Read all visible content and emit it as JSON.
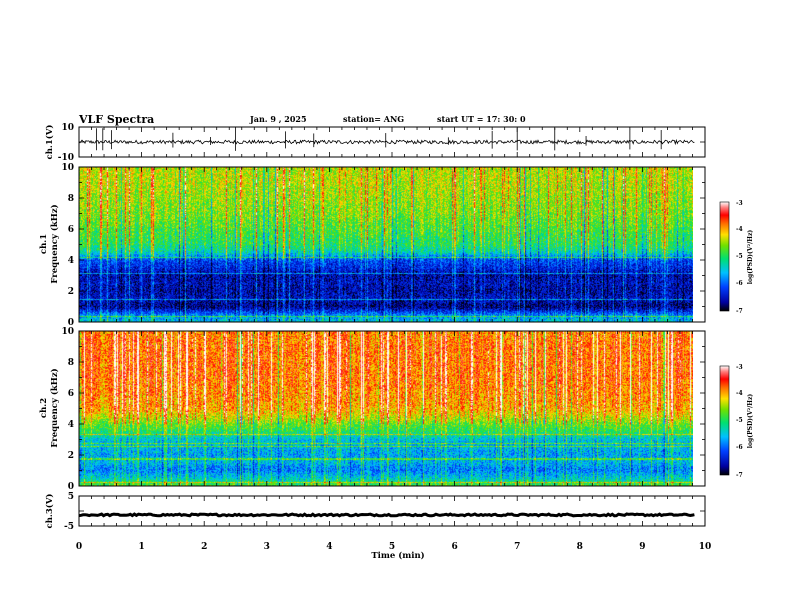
{
  "header": {
    "title": "VLF Spectra",
    "date": "Jan. 9 , 2025",
    "station": "station= ANG",
    "start": "start UT = 17: 30: 0"
  },
  "chart_data": [
    {
      "type": "line",
      "panel": "ch1-waveform",
      "ylabel": "ch.1(V)",
      "ylim": [
        -10,
        10
      ],
      "y_tick_labels": [
        "10",
        "-10"
      ],
      "xlim": [
        0,
        10
      ],
      "baseline_level": 0,
      "noise_amplitude": 1.2,
      "spike_x_min": [
        0.28,
        0.38,
        0.52,
        1.5,
        2.1,
        2.5,
        3.3,
        3.75,
        4.9,
        5.9,
        6.6,
        7.0,
        7.6,
        8.1,
        8.8,
        9.3
      ]
    },
    {
      "type": "heatmap",
      "panel": "ch1-spectrogram",
      "ylabel": [
        "ch.1",
        "Frequency (kHz)"
      ],
      "y_tick_labels": [
        "0",
        "2",
        "4",
        "6",
        "8",
        "10"
      ],
      "ylim": [
        0,
        10
      ],
      "xlim": [
        0,
        9.83
      ],
      "unit_x": "min",
      "value_unit": "log(PSD)(V²/Hz)",
      "profile_freq_khz": [
        0,
        0.4,
        0.8,
        1.0,
        1.5,
        2.0,
        2.5,
        3.0,
        3.5,
        4.0,
        4.5,
        5.0,
        6.0,
        7.0,
        8.0,
        9.0,
        10.0
      ],
      "profile_log_psd": [
        -5.5,
        -5.8,
        -6.5,
        -6.7,
        -6.5,
        -6.6,
        -6.5,
        -6.6,
        -6.3,
        -6.1,
        -5.3,
        -5.0,
        -4.8,
        -4.6,
        -4.5,
        -4.4,
        -4.4
      ],
      "colorbar": {
        "min": -7,
        "max": -3,
        "tick_labels": [
          "-3",
          "-4",
          "-5",
          "-6",
          "-7"
        ],
        "label": "log(PSD)(V²/Hz)"
      }
    },
    {
      "type": "heatmap",
      "panel": "ch2-spectrogram",
      "ylabel": [
        "ch.2",
        "Frequency (kHz)"
      ],
      "y_tick_labels": [
        "0",
        "2",
        "4",
        "6",
        "8",
        "10"
      ],
      "ylim": [
        0,
        10
      ],
      "xlim": [
        0,
        9.83
      ],
      "unit_x": "min",
      "value_unit": "log(PSD)(V²/Hz)",
      "profile_freq_khz": [
        0,
        0.4,
        0.8,
        1.0,
        1.5,
        2.0,
        2.5,
        3.0,
        3.5,
        4.0,
        4.5,
        5.0,
        6.0,
        7.0,
        8.0,
        9.0,
        10.0
      ],
      "profile_log_psd": [
        -4.8,
        -5.4,
        -5.7,
        -5.9,
        -5.6,
        -5.7,
        -5.6,
        -5.5,
        -5.0,
        -4.7,
        -4.3,
        -4.0,
        -3.9,
        -3.8,
        -3.8,
        -3.8,
        -3.9
      ],
      "colorbar": {
        "min": -7,
        "max": -3,
        "tick_labels": [
          "-3",
          "-4",
          "-5",
          "-6",
          "-7"
        ],
        "label": "log(PSD)(V²/Hz)"
      }
    },
    {
      "type": "line",
      "panel": "ch3-waveform",
      "ylabel": "ch.3(V)",
      "ylim": [
        -5,
        5
      ],
      "y_tick_labels": [
        "5",
        "-5"
      ],
      "xlim": [
        0,
        10
      ],
      "xlabel": "Time (min)",
      "x_tick_labels": [
        "0",
        "1",
        "2",
        "3",
        "4",
        "5",
        "6",
        "7",
        "8",
        "9",
        "10"
      ],
      "baseline_level": -1.3,
      "noise_amplitude": 0.3
    }
  ],
  "colors": {
    "colormap": [
      "#000060",
      "#0000c0",
      "#0060ff",
      "#00c8ff",
      "#00e0a0",
      "#30e030",
      "#c8e000",
      "#ffe000",
      "#ff8000",
      "#ff1000",
      "#ff8080",
      "#ffffff"
    ]
  }
}
